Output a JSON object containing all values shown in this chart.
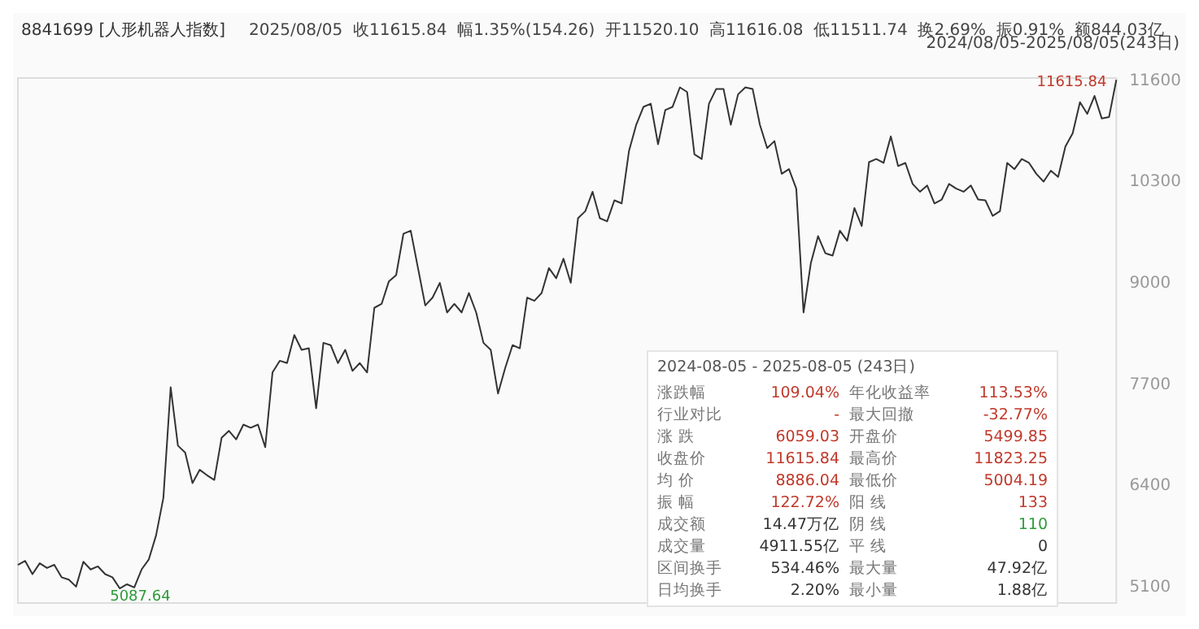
{
  "chart_data": {
    "type": "line",
    "title": "8841699 [人形机器人指数]",
    "subtitle": "2025/08/05  收11615.84  幅1.35%(154.26)  开11520.10  高11616.08  低11511.74  换2.69%  振0.91%  额844.03亿",
    "categories": [
      null,
      null,
      null,
      null,
      null,
      null,
      null,
      null,
      null,
      null,
      null,
      null,
      null,
      null,
      null,
      null,
      null,
      null,
      null,
      null,
      null,
      null,
      null,
      null,
      null,
      null,
      null,
      null,
      null,
      null,
      null,
      null,
      null,
      null,
      null,
      null,
      null,
      null,
      null,
      null,
      null,
      null,
      null,
      null,
      null,
      null,
      null,
      null,
      null,
      null,
      null,
      null,
      null,
      null,
      null,
      null,
      null,
      null,
      null,
      null,
      null,
      null,
      null,
      null,
      null,
      null,
      null,
      null,
      null,
      null,
      null,
      null,
      null,
      null,
      null,
      null,
      null,
      null,
      null,
      null,
      null,
      null,
      null,
      null,
      null,
      null,
      null,
      null,
      null,
      null,
      null,
      null,
      null,
      null,
      null,
      null,
      null,
      null,
      null,
      null,
      null,
      null,
      null,
      null,
      null,
      null,
      null,
      null,
      null,
      null,
      null,
      null,
      null,
      null,
      null,
      null,
      null,
      null,
      null,
      null,
      null,
      null,
      null,
      null,
      null,
      null,
      null,
      null,
      null,
      null,
      null,
      null,
      null,
      null,
      null,
      null,
      null,
      null,
      null,
      null,
      null,
      null,
      null,
      null,
      null,
      null,
      null,
      null,
      null,
      null,
      null,
      null
    ],
    "series": [
      {
        "color": "#333333",
        "values": [
          5390,
          5440,
          5270,
          5410,
          5350,
          5390,
          5230,
          5200,
          5110,
          5430,
          5330,
          5370,
          5270,
          5230,
          5087.64,
          5140,
          5100,
          5330,
          5460,
          5770,
          6250,
          7670,
          6920,
          6830,
          6440,
          6610,
          6540,
          6480,
          7020,
          7110,
          7000,
          7190,
          7150,
          7190,
          6900,
          7860,
          8010,
          7980,
          8340,
          8150,
          8170,
          7400,
          8240,
          8210,
          7980,
          8150,
          7880,
          7980,
          7860,
          8690,
          8740,
          9030,
          9110,
          9640,
          9680,
          9200,
          8720,
          8820,
          9010,
          8630,
          8740,
          8630,
          8880,
          8630,
          8240,
          8150,
          7590,
          7920,
          8210,
          8170,
          8820,
          8780,
          8880,
          9200,
          9070,
          9320,
          9010,
          9840,
          9930,
          10180,
          9840,
          9800,
          10070,
          10030,
          10700,
          11040,
          11270,
          11310,
          10790,
          11230,
          11270,
          11520,
          11460,
          10660,
          10600,
          11310,
          11500,
          11500,
          11040,
          11430,
          11520,
          11500,
          11040,
          10740,
          10830,
          10410,
          10470,
          10220,
          8630,
          9260,
          9610,
          9390,
          9360,
          9680,
          9550,
          9970,
          9740,
          10560,
          10600,
          10550,
          10890,
          10510,
          10550,
          10280,
          10180,
          10260,
          10030,
          10080,
          10280,
          10220,
          10180,
          10260,
          10080,
          10070,
          9870,
          9930,
          10550,
          10470,
          10600,
          10550,
          10410,
          10310,
          10450,
          10370,
          10760,
          10930,
          11330,
          11180,
          11410,
          11120,
          11140,
          11615.84
        ]
      }
    ],
    "ylim": [
      4900,
      11640
    ],
    "yticks": [
      5100,
      6400,
      7700,
      9000,
      10300,
      11600
    ],
    "grid": false,
    "marker": "none",
    "line_style": "solid",
    "annotations": [
      "2024/08/05-2025/08/05(243日)",
      "2024-08-05 - 2025-08-05 (243日)",
      "涨跌幅",
      "109.04%",
      "年化收益率",
      "113.53%",
      "行业对比",
      "-",
      "最大回撤",
      "-32.77%",
      "涨 跌",
      "6059.03",
      "开盘价",
      "5499.85",
      "收盘价",
      "11615.84",
      "最高价",
      "11823.25",
      "均 价",
      "8886.04",
      "最低价",
      "5004.19",
      "振 幅",
      "122.72%",
      "阳 线",
      "133",
      "成交额",
      "14.47万亿",
      "阴 线",
      "110",
      "成交量",
      "4911.55亿",
      "平 线",
      "0",
      "区间换手",
      "534.46%",
      "最大量",
      "47.92亿",
      "日均换手",
      "2.20%",
      "最小量",
      "1.88亿",
      "11615.84",
      "5087.64"
    ]
  }
}
